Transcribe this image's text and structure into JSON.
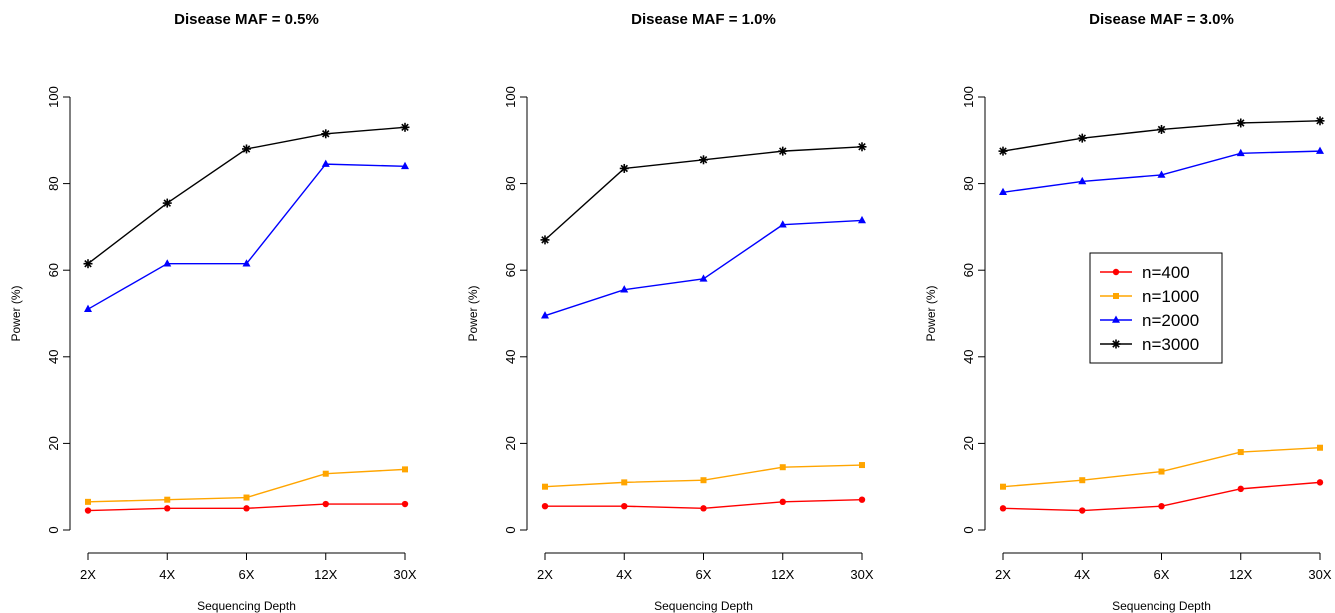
{
  "colors": {
    "n400": "#ff0000",
    "n1000": "#ffa500",
    "n2000": "#0000ff",
    "n3000": "#000000"
  },
  "legend": [
    {
      "label": "n=400",
      "color": "#ff0000",
      "marker": "circle"
    },
    {
      "label": "n=1000",
      "color": "#ffa500",
      "marker": "square"
    },
    {
      "label": "n=2000",
      "color": "#0000ff",
      "marker": "triangle"
    },
    {
      "label": "n=3000",
      "color": "#000000",
      "marker": "asterisk"
    }
  ],
  "chart_data": [
    {
      "type": "line",
      "title": "Disease MAF = 0.5%",
      "xlabel": "Sequencing Depth",
      "ylabel": "Power (%)",
      "categories": [
        "2X",
        "4X",
        "6X",
        "12X",
        "30X"
      ],
      "ylim": [
        0,
        100
      ],
      "yticks": [
        "0",
        "20",
        "40",
        "60",
        "80",
        "100"
      ],
      "grid": false,
      "series": [
        {
          "name": "n=400",
          "values": [
            4.5,
            5,
            5,
            6,
            6
          ]
        },
        {
          "name": "n=1000",
          "values": [
            6.5,
            7,
            7.5,
            13,
            14
          ]
        },
        {
          "name": "n=2000",
          "values": [
            51,
            61.5,
            61.5,
            84.5,
            84
          ]
        },
        {
          "name": "n=3000",
          "values": [
            61.5,
            75.5,
            88,
            91.5,
            93
          ]
        }
      ]
    },
    {
      "type": "line",
      "title": "Disease MAF = 1.0%",
      "xlabel": "Sequencing Depth",
      "ylabel": "Power (%)",
      "categories": [
        "2X",
        "4X",
        "6X",
        "12X",
        "30X"
      ],
      "ylim": [
        0,
        100
      ],
      "yticks": [
        "0",
        "20",
        "40",
        "60",
        "80",
        "100"
      ],
      "grid": false,
      "series": [
        {
          "name": "n=400",
          "values": [
            5.5,
            5.5,
            5,
            6.5,
            7
          ]
        },
        {
          "name": "n=1000",
          "values": [
            10,
            11,
            11.5,
            14.5,
            15
          ]
        },
        {
          "name": "n=2000",
          "values": [
            49.5,
            55.5,
            58,
            70.5,
            71.5
          ]
        },
        {
          "name": "n=3000",
          "values": [
            67,
            83.5,
            85.5,
            87.5,
            88.5
          ]
        }
      ]
    },
    {
      "type": "line",
      "title": "Disease MAF = 3.0%",
      "xlabel": "Sequencing Depth",
      "ylabel": "Power (%)",
      "categories": [
        "2X",
        "4X",
        "6X",
        "12X",
        "30X"
      ],
      "ylim": [
        0,
        100
      ],
      "yticks": [
        "0",
        "20",
        "40",
        "60",
        "80",
        "100"
      ],
      "grid": false,
      "legend_position": "center-right",
      "series": [
        {
          "name": "n=400",
          "values": [
            5,
            4.5,
            5.5,
            9.5,
            11
          ]
        },
        {
          "name": "n=1000",
          "values": [
            10,
            11.5,
            13.5,
            18,
            19
          ]
        },
        {
          "name": "n=2000",
          "values": [
            78,
            80.5,
            82,
            87,
            87.5
          ]
        },
        {
          "name": "n=3000",
          "values": [
            87.5,
            90.5,
            92.5,
            94,
            94.5
          ]
        }
      ]
    }
  ]
}
